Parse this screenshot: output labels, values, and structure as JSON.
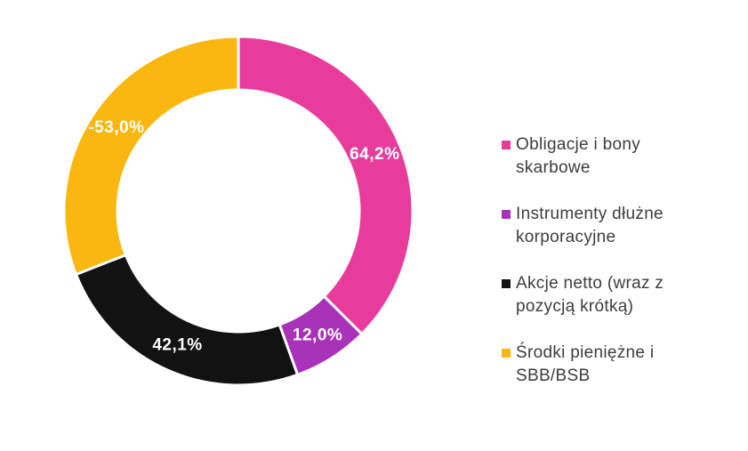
{
  "chart_data": {
    "type": "pie",
    "subtype": "donut",
    "title": "",
    "legend_position": "right",
    "label_color": "#FFFFFF",
    "angle_rule": "segment angles proportional to absolute values, starting at 12 o'clock going clockwise",
    "segments": [
      {
        "value": 64.2,
        "label": "64,2%",
        "color": "#E83C9C",
        "legend": "Obligacje i bony\nskarbowe"
      },
      {
        "value": 12.0,
        "label": "12,0%",
        "color": "#A832B8",
        "legend": "Instrumenty dłużne\nkorporacyjne"
      },
      {
        "value": 42.1,
        "label": "42,1%",
        "color": "#121212",
        "legend": "Akcje netto (wraz z\npozycją krótką)"
      },
      {
        "value": -53.0,
        "label": "-53,0%",
        "color": "#F9B70F",
        "legend": "Środki pieniężne i\nSBB/BSB"
      }
    ]
  }
}
